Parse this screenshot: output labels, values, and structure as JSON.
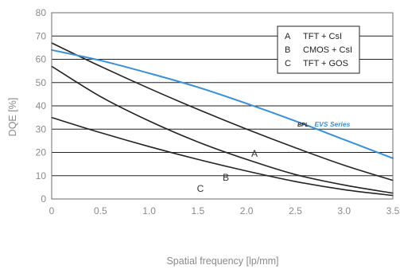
{
  "chart_data": {
    "type": "line",
    "xlabel": "Spatial frequency [lp/mm]",
    "ylabel": "DQE [%]",
    "xlim": [
      0,
      3.5
    ],
    "ylim": [
      0,
      80
    ],
    "x_ticks": [
      "0",
      "0.5",
      "1.0",
      "1.5",
      "2.0",
      "2.5",
      "3.0",
      "3.5"
    ],
    "y_ticks": [
      "0",
      "10",
      "20",
      "30",
      "40",
      "50",
      "60",
      "70",
      "80"
    ],
    "grid": "horizontal",
    "legend_position": "top-right",
    "legend": [
      {
        "key": "A",
        "text": "TFT + CsI"
      },
      {
        "key": "B",
        "text": "CMOS + CsI"
      },
      {
        "key": "C",
        "text": "TFT + GOS"
      }
    ],
    "series": [
      {
        "name": "A",
        "color": "#222222",
        "x": [
          0,
          0.5,
          1.0,
          1.5,
          2.0,
          2.5,
          3.0,
          3.5
        ],
        "y": [
          67,
          57,
          47.5,
          38.5,
          30,
          22,
          14.5,
          8
        ]
      },
      {
        "name": "B",
        "color": "#222222",
        "x": [
          0,
          0.5,
          1.0,
          1.5,
          2.0,
          2.5,
          3.0,
          3.5
        ],
        "y": [
          57,
          44,
          33.5,
          24.5,
          17,
          10.5,
          6,
          2.5
        ]
      },
      {
        "name": "C",
        "color": "#222222",
        "x": [
          0,
          0.5,
          1.0,
          1.5,
          2.0,
          2.5,
          3.0,
          3.5
        ],
        "y": [
          35,
          28.5,
          22.5,
          17,
          12,
          7.5,
          4,
          1.5
        ]
      },
      {
        "name": "EVS Series",
        "prefix": "BPL",
        "color": "#3a8fd6",
        "x": [
          0,
          0.5,
          1.0,
          1.5,
          2.0,
          2.5,
          3.0,
          3.5
        ],
        "y": [
          64,
          59.5,
          54,
          48,
          41,
          33.5,
          25.5,
          17.5
        ]
      }
    ]
  }
}
